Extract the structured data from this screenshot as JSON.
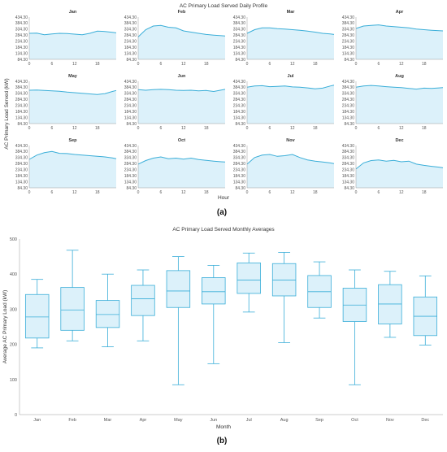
{
  "panel_a": {
    "caption": "(a)",
    "title": "AC Primary Load Served Daily Profile",
    "xlabel": "Hour",
    "ylabel": "AC Primary Load Served (kW)",
    "line_color": "#3aaed8",
    "fill_color": "#dcf1fa"
  },
  "panel_b": {
    "caption": "(b)",
    "title": "AC Primary Load Served Monthly Averages",
    "xlabel": "Month",
    "ylabel": "Average AC Primary Load (kW)",
    "box_color": "#3aaed8",
    "box_fill": "#dcf1fa"
  },
  "chart_data": [
    {
      "type": "area",
      "title": "AC Primary Load Served Daily Profile",
      "xlabel": "Hour",
      "ylabel": "AC Primary Load Served (kW)",
      "xlim": [
        0,
        23
      ],
      "ylim": [
        84.3,
        434.3
      ],
      "x_ticks": [
        "0",
        "6",
        "12",
        "18"
      ],
      "y_ticks": [
        "84.30",
        "134.30",
        "184.30",
        "234.30",
        "284.30",
        "334.30",
        "384.30",
        "434.30"
      ],
      "x": [
        0,
        2,
        4,
        6,
        8,
        10,
        12,
        14,
        16,
        18,
        20,
        22,
        23
      ],
      "panels": [
        {
          "name": "Jan",
          "values": [
            300,
            302,
            288,
            295,
            300,
            298,
            293,
            288,
            300,
            318,
            315,
            308,
            304
          ]
        },
        {
          "name": "Feb",
          "values": [
            270,
            330,
            360,
            365,
            350,
            345,
            320,
            310,
            300,
            290,
            285,
            280,
            278
          ]
        },
        {
          "name": "Mar",
          "values": [
            300,
            330,
            345,
            345,
            338,
            335,
            330,
            325,
            318,
            310,
            300,
            295,
            290
          ]
        },
        {
          "name": "Apr",
          "values": [
            340,
            360,
            365,
            370,
            360,
            355,
            350,
            345,
            335,
            330,
            325,
            322,
            320
          ]
        },
        {
          "name": "May",
          "values": [
            360,
            362,
            358,
            355,
            352,
            345,
            340,
            335,
            330,
            325,
            332,
            350,
            358
          ]
        },
        {
          "name": "Jun",
          "values": [
            365,
            360,
            365,
            368,
            365,
            360,
            358,
            360,
            355,
            358,
            350,
            362,
            368
          ]
        },
        {
          "name": "Jul",
          "values": [
            385,
            395,
            398,
            390,
            392,
            395,
            388,
            385,
            380,
            372,
            378,
            395,
            402
          ]
        },
        {
          "name": "Aug",
          "values": [
            385,
            395,
            400,
            395,
            390,
            385,
            382,
            375,
            370,
            378,
            375,
            380,
            382
          ]
        },
        {
          "name": "Sep",
          "values": [
            320,
            355,
            375,
            385,
            370,
            368,
            360,
            355,
            350,
            345,
            340,
            332,
            325
          ]
        },
        {
          "name": "Oct",
          "values": [
            280,
            310,
            330,
            340,
            325,
            330,
            322,
            330,
            318,
            312,
            305,
            300,
            298
          ]
        },
        {
          "name": "Nov",
          "values": [
            280,
            335,
            355,
            360,
            345,
            350,
            360,
            335,
            315,
            305,
            298,
            290,
            285
          ]
        },
        {
          "name": "Dec",
          "values": [
            240,
            290,
            310,
            315,
            305,
            312,
            300,
            305,
            280,
            270,
            262,
            255,
            250
          ]
        }
      ]
    },
    {
      "type": "box",
      "title": "AC Primary Load Served Monthly Averages",
      "xlabel": "Month",
      "ylabel": "Average AC Primary Load (kW)",
      "ylim": [
        0,
        500
      ],
      "y_ticks": [
        0,
        100,
        200,
        300,
        400,
        500
      ],
      "categories": [
        "Jan",
        "Feb",
        "Mar",
        "Apr",
        "May",
        "Jun",
        "Jul",
        "Aug",
        "Sep",
        "Oct",
        "Nov",
        "Dec"
      ],
      "boxes": [
        {
          "min": 190,
          "q1": 218,
          "median": 278,
          "q3": 342,
          "max": 385
        },
        {
          "min": 210,
          "q1": 240,
          "median": 298,
          "q3": 362,
          "max": 468
        },
        {
          "min": 193,
          "q1": 248,
          "median": 285,
          "q3": 325,
          "max": 400
        },
        {
          "min": 210,
          "q1": 282,
          "median": 330,
          "q3": 368,
          "max": 412
        },
        {
          "min": 85,
          "q1": 305,
          "median": 352,
          "q3": 410,
          "max": 450
        },
        {
          "min": 145,
          "q1": 315,
          "median": 350,
          "q3": 390,
          "max": 425
        },
        {
          "min": 292,
          "q1": 345,
          "median": 383,
          "q3": 432,
          "max": 460
        },
        {
          "min": 205,
          "q1": 338,
          "median": 383,
          "q3": 430,
          "max": 462
        },
        {
          "min": 275,
          "q1": 305,
          "median": 350,
          "q3": 396,
          "max": 435
        },
        {
          "min": 85,
          "q1": 265,
          "median": 312,
          "q3": 360,
          "max": 412
        },
        {
          "min": 220,
          "q1": 258,
          "median": 315,
          "q3": 370,
          "max": 408
        },
        {
          "min": 198,
          "q1": 225,
          "median": 280,
          "q3": 335,
          "max": 395
        }
      ]
    }
  ]
}
